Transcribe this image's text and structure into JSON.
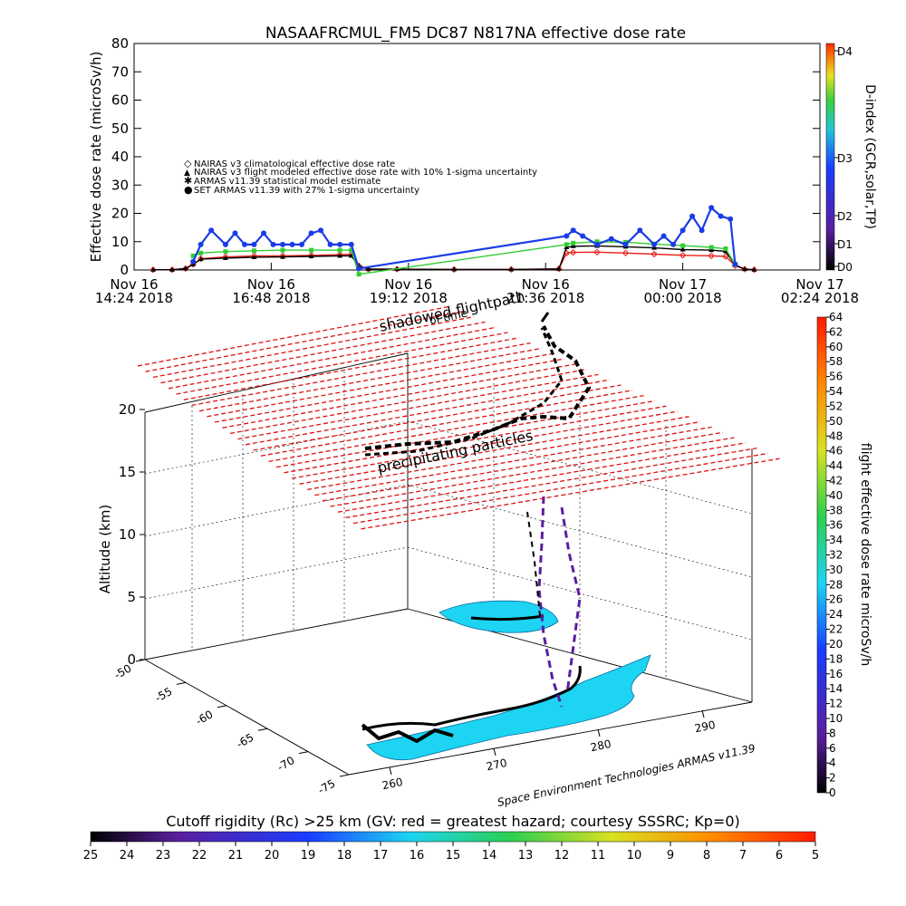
{
  "title": "NASAAFRCMUL_FM5 DC87 N817NA effective dose rate",
  "credit": "Space Environment Technologies ARMAS v11.39",
  "shadowed_label": "shadowed flightpath",
  "shadowed_sub": "of time",
  "precip_label": "precipitating particles",
  "colors": {
    "nairas_clim": "#e8201a",
    "nairas_flight": "#000000",
    "armas_model": "#33cc33",
    "set_armas": "#1a3ce6",
    "flightpath": "#000000",
    "shadow": "#1dd4f2",
    "precip_grid": "#e01010"
  },
  "chart_data": [
    {
      "type": "line",
      "title": "NASAAFRCMUL_FM5 DC87 N817NA effective dose rate",
      "ylabel": "Effective dose rate (microSv/h)",
      "ylim": [
        0,
        80
      ],
      "yticks": [
        "0",
        "10",
        "20",
        "30",
        "40",
        "50",
        "60",
        "70",
        "80"
      ],
      "xticks": [
        {
          "line1": "Nov 16",
          "line2": "14:24 2018"
        },
        {
          "line1": "Nov 16",
          "line2": "16:48 2018"
        },
        {
          "line1": "Nov 16",
          "line2": "19:12 2018"
        },
        {
          "line1": "Nov 16",
          "line2": "21:36 2018"
        },
        {
          "line1": "Nov 17",
          "line2": "00:00 2018"
        },
        {
          "line1": "Nov 17",
          "line2": "02:24 2018"
        }
      ],
      "right_axis": {
        "label": "D-index (GCR,solar,TP)",
        "ticks": [
          "D0",
          "D1",
          "D2",
          "D3",
          "D4"
        ]
      },
      "legend": [
        {
          "marker": "◇",
          "text": "NAIRAS v3 climatological effective dose rate"
        },
        {
          "marker": "▲",
          "text": "NAIRAS v3 flight modeled effective dose rate with 10% 1-sigma uncertainty"
        },
        {
          "marker": "✱",
          "text": "ARMAS v11.39 statistical model estimate"
        },
        {
          "marker": "●",
          "text": "SET ARMAS v11.39 with 27% 1-sigma uncertainty"
        }
      ],
      "legend_position": "upper-left",
      "series": [
        {
          "name": "NAIRAS v3 climatological effective dose rate",
          "x": [
            "14:44",
            "15:04",
            "15:18",
            "15:26",
            "15:34",
            "16:00",
            "16:30",
            "17:00",
            "17:30",
            "18:00",
            "18:12",
            "18:20",
            "18:30",
            "19:00",
            "20:00",
            "21:00",
            "21:50",
            "21:58",
            "22:05",
            "22:30",
            "23:00",
            "23:30",
            "00:00",
            "00:30",
            "00:45",
            "00:55",
            "01:05",
            "01:15"
          ],
          "y": [
            0.1,
            0.1,
            0.5,
            2,
            4,
            4.6,
            5,
            5,
            5.2,
            5.4,
            5.5,
            1.5,
            0.3,
            0.3,
            0.2,
            0.2,
            0.4,
            6,
            6.2,
            6.3,
            6,
            5.6,
            5.2,
            5,
            4.8,
            1.5,
            0.3,
            0.1
          ]
        },
        {
          "name": "NAIRAS v3 flight modeled effective dose rate with 10% 1-sigma uncertainty",
          "x": [
            "14:44",
            "15:04",
            "15:18",
            "15:26",
            "15:34",
            "16:00",
            "16:30",
            "17:00",
            "17:30",
            "18:00",
            "18:12",
            "18:20",
            "18:30",
            "19:00",
            "20:00",
            "21:00",
            "21:50",
            "21:58",
            "22:05",
            "22:30",
            "23:00",
            "23:30",
            "00:00",
            "00:30",
            "00:45",
            "00:55",
            "01:05",
            "01:15"
          ],
          "y": [
            0.1,
            0.1,
            0.5,
            2,
            3.8,
            4.2,
            4.5,
            4.6,
            4.8,
            5,
            5,
            1.4,
            0.3,
            0.3,
            0.2,
            0.2,
            0.4,
            8,
            8.4,
            8.5,
            8.2,
            7.8,
            7.2,
            7,
            6.6,
            1.8,
            0.3,
            0.1
          ]
        },
        {
          "name": "ARMAS v11.39 statistical model estimate",
          "x": [
            "15:26",
            "15:34",
            "16:00",
            "16:30",
            "17:00",
            "17:30",
            "18:00",
            "18:12",
            "18:20",
            "21:58",
            "22:05",
            "22:30",
            "23:00",
            "23:30",
            "00:00",
            "00:30",
            "00:45",
            "00:55"
          ],
          "y": [
            5,
            6,
            6.5,
            6.8,
            7,
            7,
            7,
            7,
            -1.5,
            9,
            9.5,
            10,
            9.8,
            9.2,
            8.6,
            8,
            7.5,
            2
          ]
        },
        {
          "name": "SET ARMAS v11.39 with 27% 1-sigma uncertainty",
          "x": [
            "15:26",
            "15:34",
            "15:45",
            "16:00",
            "16:10",
            "16:20",
            "16:30",
            "16:40",
            "16:50",
            "17:00",
            "17:10",
            "17:20",
            "17:30",
            "17:40",
            "17:50",
            "18:00",
            "18:12",
            "18:20",
            "21:58",
            "22:05",
            "22:15",
            "22:30",
            "22:45",
            "23:00",
            "23:15",
            "23:30",
            "23:40",
            "23:50",
            "00:00",
            "00:10",
            "00:20",
            "00:30",
            "00:40",
            "00:50",
            "00:55"
          ],
          "y": [
            3,
            9,
            14,
            9,
            13,
            9,
            9,
            13,
            9,
            9,
            9,
            9,
            13,
            14,
            9,
            9,
            9,
            0.5,
            12,
            14,
            12,
            9,
            11,
            9,
            14,
            9,
            12,
            9,
            14,
            19,
            14,
            22,
            19,
            18,
            2
          ]
        }
      ]
    },
    {
      "type": "scatter",
      "zlabel": "Altitude (km)",
      "zticks": [
        "0",
        "5",
        "10",
        "15",
        "20"
      ],
      "lat_ticks": [
        "-50",
        "-55",
        "-60",
        "-65",
        "-70",
        "-75"
      ],
      "lon_ticks": [
        "260",
        "270",
        "280",
        "290"
      ],
      "colorbar_right": {
        "label": "flight effective dose rate microSv/h",
        "ticks": [
          "0",
          "2",
          "4",
          "6",
          "8",
          "10",
          "12",
          "14",
          "16",
          "18",
          "20",
          "22",
          "24",
          "26",
          "28",
          "30",
          "32",
          "34",
          "36",
          "38",
          "40",
          "42",
          "44",
          "46",
          "48",
          "50",
          "52",
          "54",
          "56",
          "58",
          "60",
          "62",
          "64"
        ]
      },
      "colorbar_bottom": {
        "label": "Cutoff rigidity (Rc) >25 km (GV: red = greatest hazard; courtesy SSSRC; Kp=0)",
        "ticks": [
          "25",
          "24",
          "23",
          "22",
          "21",
          "20",
          "19",
          "18",
          "17",
          "16",
          "15",
          "14",
          "13",
          "12",
          "11",
          "10",
          "9",
          "8",
          "7",
          "6",
          "5"
        ]
      }
    }
  ]
}
